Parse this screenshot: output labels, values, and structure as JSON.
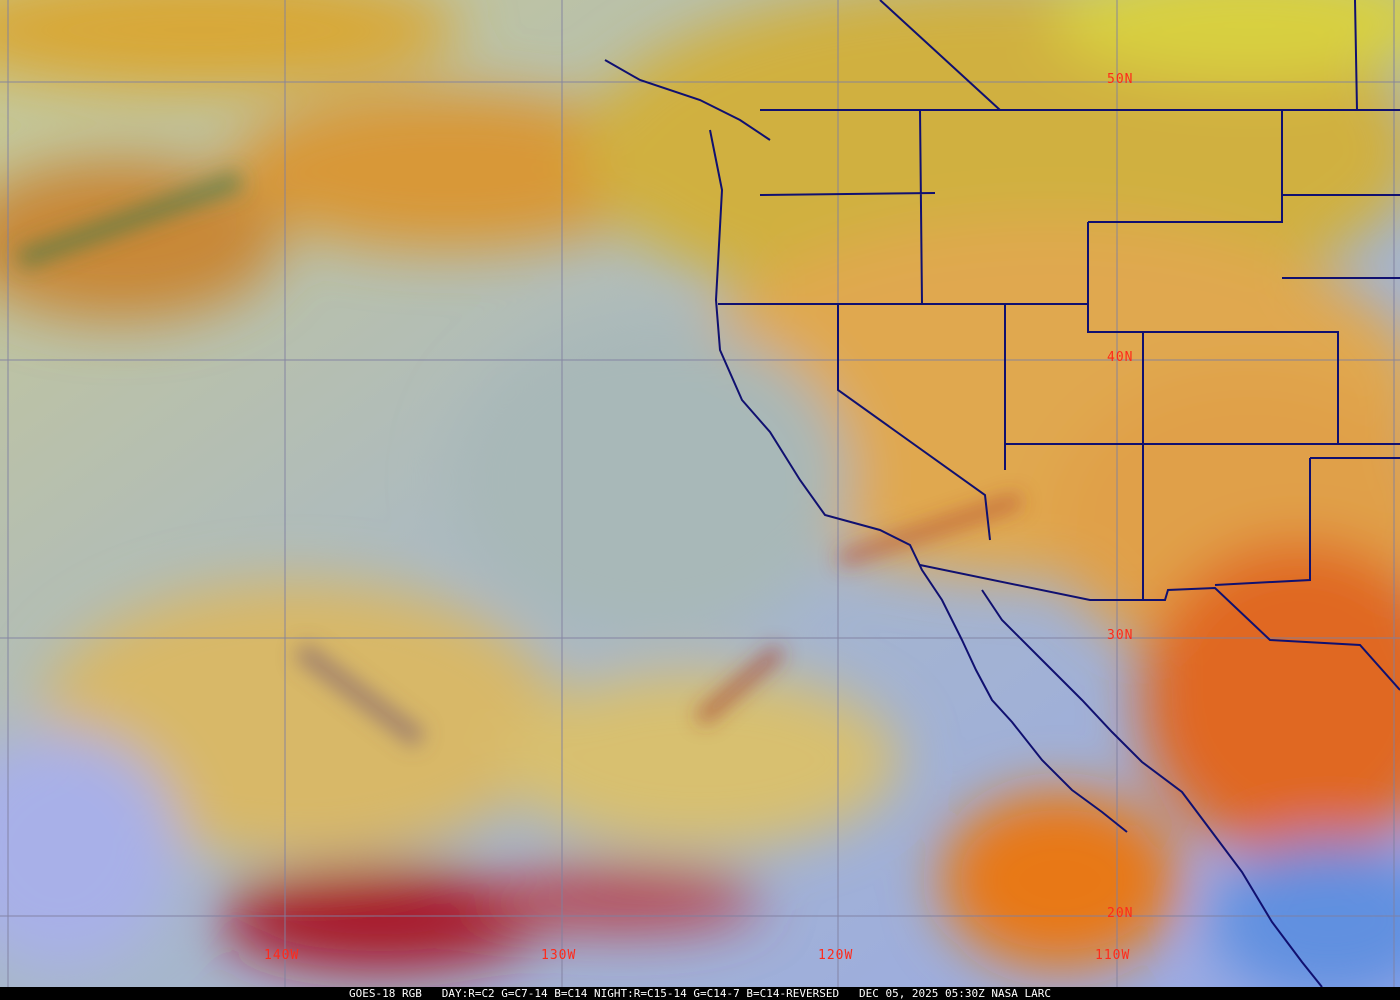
{
  "caption": {
    "satellite": "GOES-18 RGB",
    "day_recipe": "DAY:R=C2 G=C7-14 B=C14",
    "night_recipe": "NIGHT:R=C15-14 G=C14-7 B=C14-REVERSED",
    "datetime": "DEC 05, 2025 05:30Z",
    "credit": "NASA LARC"
  },
  "grid_labels": {
    "lat": [
      "50N",
      "40N",
      "30N",
      "20N"
    ],
    "lon": [
      "140W",
      "130W",
      "120W",
      "110W"
    ]
  },
  "colors": {
    "grid": "#8080a0",
    "borders": "#101070",
    "labels": "#ff2a1a",
    "clear_ocean": "#9aa8e0",
    "high_cloud": "#d8b850",
    "cold_cloud": "#a01828"
  }
}
